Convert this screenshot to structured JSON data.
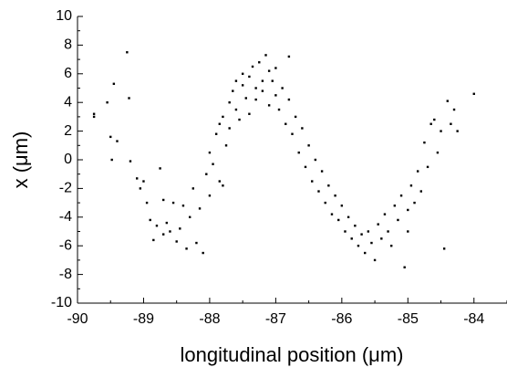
{
  "chart_data": {
    "type": "scatter",
    "x_label": "longitudinal position (μm)",
    "y_label": "x (μm)",
    "color": "#000000",
    "xlim": [
      -90,
      -83.5
    ],
    "ylim": [
      -10,
      10
    ],
    "xticks": [
      -90,
      -89,
      -88,
      -87,
      -86,
      -85,
      -84
    ],
    "yticks": [
      -10,
      -8,
      -6,
      -4,
      -2,
      0,
      2,
      4,
      6,
      8,
      10
    ],
    "x": [
      -89.75,
      -89.75,
      -89.55,
      -89.5,
      -89.48,
      -89.45,
      -89.4,
      -89.25,
      -89.22,
      -89.2,
      -89.1,
      -89.05,
      -89.0,
      -88.95,
      -88.9,
      -88.85,
      -88.8,
      -88.75,
      -88.7,
      -88.7,
      -88.65,
      -88.6,
      -88.55,
      -88.5,
      -88.45,
      -88.4,
      -88.35,
      -88.3,
      -88.25,
      -88.2,
      -88.15,
      -88.1,
      -88.05,
      -88.0,
      -88.0,
      -87.95,
      -87.9,
      -87.85,
      -87.85,
      -87.8,
      -87.8,
      -87.75,
      -87.7,
      -87.7,
      -87.65,
      -87.6,
      -87.6,
      -87.55,
      -87.5,
      -87.5,
      -87.45,
      -87.4,
      -87.4,
      -87.35,
      -87.3,
      -87.3,
      -87.25,
      -87.2,
      -87.2,
      -87.15,
      -87.1,
      -87.1,
      -87.05,
      -87.0,
      -87.0,
      -86.95,
      -86.9,
      -86.85,
      -86.8,
      -86.8,
      -86.75,
      -86.7,
      -86.65,
      -86.6,
      -86.55,
      -86.5,
      -86.45,
      -86.4,
      -86.35,
      -86.3,
      -86.25,
      -86.2,
      -86.15,
      -86.1,
      -86.05,
      -86.0,
      -85.95,
      -85.9,
      -85.85,
      -85.8,
      -85.75,
      -85.7,
      -85.65,
      -85.6,
      -85.55,
      -85.5,
      -85.45,
      -85.4,
      -85.35,
      -85.3,
      -85.25,
      -85.2,
      -85.15,
      -85.1,
      -85.05,
      -85.0,
      -85.0,
      -84.95,
      -84.9,
      -84.85,
      -84.8,
      -84.75,
      -84.7,
      -84.65,
      -84.6,
      -84.55,
      -84.5,
      -84.45,
      -84.4,
      -84.35,
      -84.3,
      -84.25,
      -84.0
    ],
    "values": [
      3.2,
      3.0,
      4.0,
      1.6,
      0.0,
      5.3,
      1.3,
      7.5,
      4.3,
      -0.1,
      -1.3,
      -2.0,
      -1.5,
      -3.0,
      -4.2,
      -5.6,
      -4.6,
      -0.6,
      -2.8,
      -5.2,
      -4.4,
      -5.0,
      -3.0,
      -5.7,
      -4.8,
      -3.2,
      -6.2,
      -4.0,
      -2.0,
      -5.8,
      -3.4,
      -6.5,
      -1.0,
      -2.5,
      0.5,
      -0.3,
      1.8,
      -1.5,
      2.5,
      3.0,
      -1.8,
      1.0,
      4.0,
      2.2,
      4.8,
      3.5,
      5.5,
      2.8,
      5.2,
      6.0,
      4.3,
      5.8,
      3.2,
      6.5,
      5.0,
      4.2,
      6.8,
      5.5,
      4.8,
      7.3,
      6.2,
      3.8,
      5.5,
      4.5,
      6.4,
      3.5,
      5.0,
      2.5,
      4.2,
      7.2,
      1.8,
      3.0,
      0.5,
      2.2,
      -0.5,
      1.0,
      -1.5,
      0.0,
      -2.2,
      -0.8,
      -3.0,
      -1.8,
      -3.8,
      -2.5,
      -4.2,
      -3.2,
      -5.0,
      -4.0,
      -5.5,
      -4.6,
      -6.0,
      -5.2,
      -6.5,
      -5.0,
      -5.8,
      -7.0,
      -4.5,
      -5.5,
      -3.8,
      -5.0,
      -6.0,
      -3.2,
      -4.2,
      -2.5,
      -7.5,
      -3.5,
      -5.0,
      -1.8,
      -3.0,
      -0.8,
      -2.2,
      1.2,
      -0.5,
      2.5,
      2.8,
      0.5,
      2.0,
      -6.2,
      4.1,
      2.5,
      3.5,
      2.0,
      4.6
    ]
  }
}
